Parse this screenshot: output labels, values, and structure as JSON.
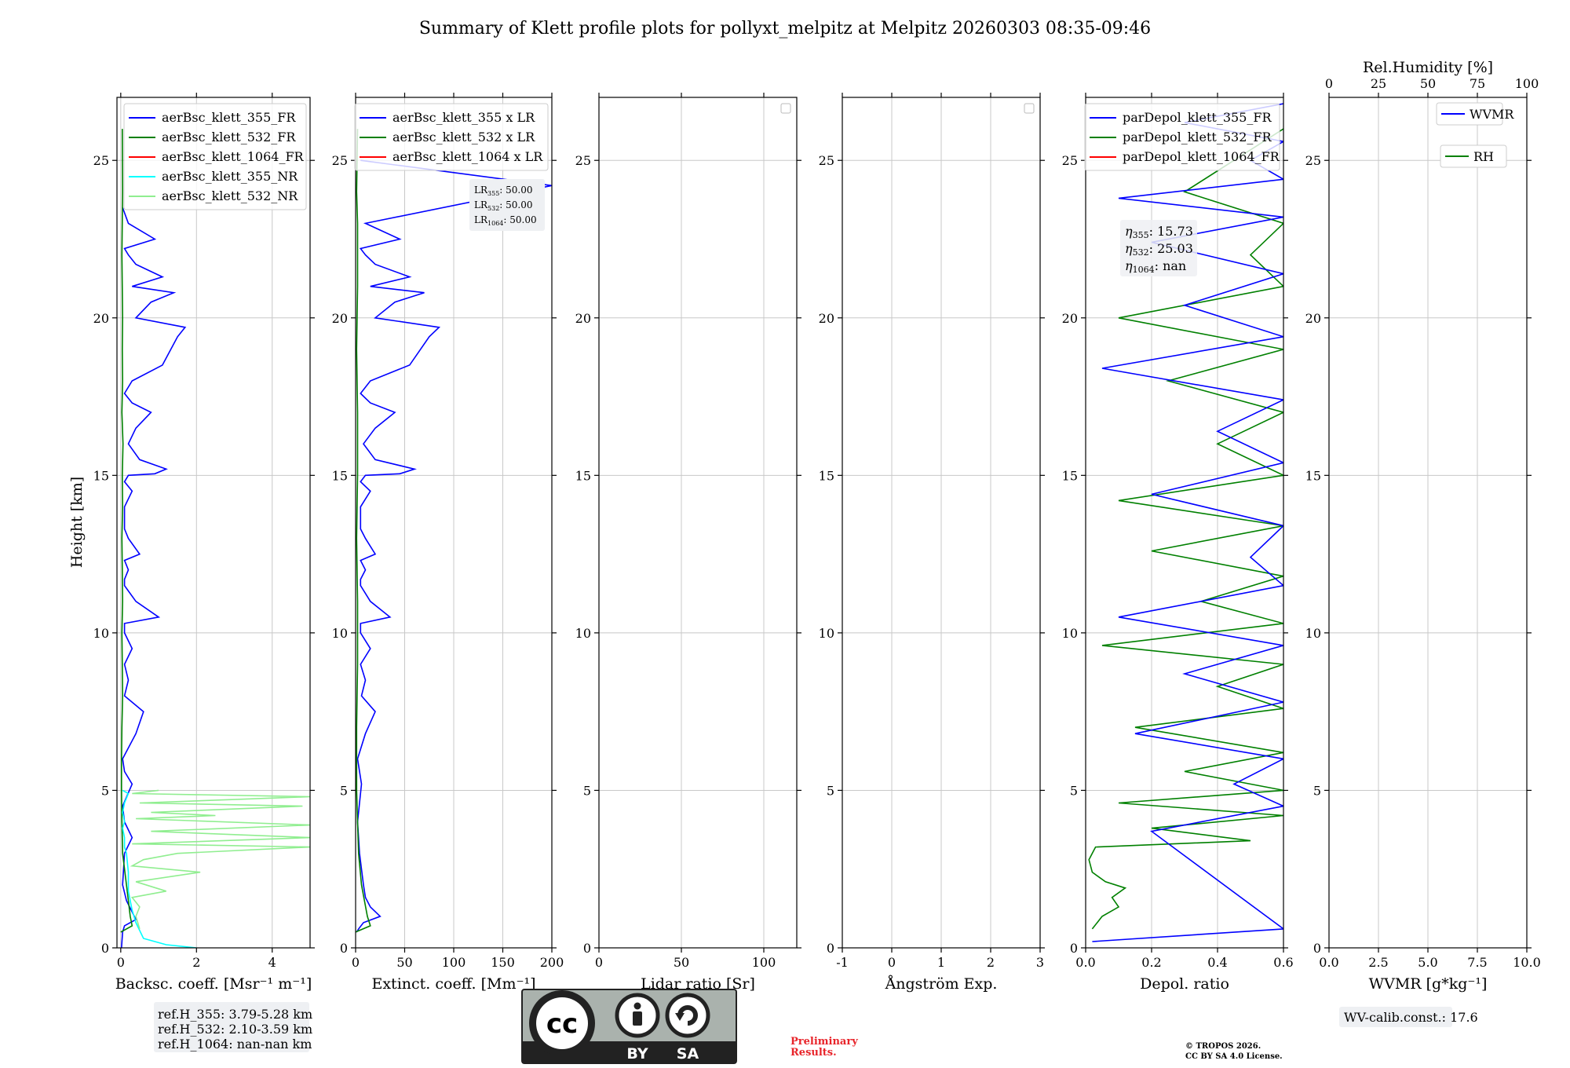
{
  "chart_data": {
    "type": "line",
    "title": "Summary of Klett profile plots for pollyxt_melpitz at Melpitz 20260303 08:35-09:46",
    "ylabel": "Height [km]",
    "ylim": [
      0,
      27
    ],
    "yticks": [
      0,
      5,
      10,
      15,
      20,
      25
    ],
    "grid": true,
    "panels": [
      {
        "id": "bsc",
        "xlabel": "Backsc. coeff. [Msr⁻¹ m⁻¹]",
        "xlim": [
          -0.1,
          5
        ],
        "xticks": [
          0,
          2,
          4
        ],
        "legend": [
          "aerBsc_klett_355_FR",
          "aerBsc_klett_532_FR",
          "aerBsc_klett_1064_FR",
          "aerBsc_klett_355_NR",
          "aerBsc_klett_532_NR"
        ],
        "legend_colors": [
          "#0000ff",
          "#008000",
          "#ff0000",
          "#00ffff",
          "#90ee90"
        ],
        "legend_position": "top-right",
        "series": [
          {
            "name": "aerBsc_klett_355_FR",
            "color": "#0000ff",
            "x": [
              0.02,
              0.05,
              0.1,
              0.4,
              0.15,
              0.05,
              0.1,
              0.3,
              0.1,
              0.05,
              0.3,
              0.1,
              0.05,
              0.4,
              0.6,
              0.1,
              0.2,
              0.1,
              0.3,
              0.1,
              0.1,
              1.0,
              0.4,
              0.1,
              0.1,
              0.2,
              0.1,
              0.5,
              0.2,
              0.1,
              0.1,
              0.3,
              0.1,
              0.2,
              0.9,
              1.2,
              0.5,
              0.2,
              0.4,
              0.8,
              0.3,
              0.1,
              0.3,
              1.1,
              1.5,
              1.7,
              0.4,
              0.8,
              1.4,
              0.3,
              1.1,
              0.4,
              0.2,
              0.1,
              0.9,
              0.2,
              0.05
            ],
            "y": [
              0,
              0.5,
              0.7,
              0.9,
              1.5,
              2,
              3,
              3.5,
              4,
              4.5,
              5.2,
              5.6,
              6,
              6.8,
              7.5,
              8,
              8.5,
              9,
              9.5,
              10,
              10.3,
              10.5,
              11,
              11.5,
              11.7,
              12,
              12.3,
              12.5,
              13,
              13.3,
              14,
              14.5,
              14.8,
              15,
              15.05,
              15.2,
              15.5,
              16,
              16.5,
              17,
              17.3,
              17.6,
              18,
              18.5,
              19.4,
              19.7,
              20,
              20.5,
              20.8,
              21,
              21.3,
              21.7,
              22,
              22.2,
              22.5,
              23,
              23.5
            ]
          },
          {
            "name": "aerBsc_klett_532_FR",
            "color": "#008000",
            "x": [
              0,
              0.3,
              0.25,
              0.15,
              0.05,
              0.03,
              0.02,
              0.02,
              0.03,
              0.05,
              0.04,
              0.03,
              0.05,
              0.04,
              0.03,
              0.05,
              0.04,
              0.06,
              0.03,
              0.05,
              0.04,
              0.05,
              0.03,
              0.05,
              0.04
            ],
            "y": [
              0.5,
              0.7,
              1,
              2,
              3,
              4,
              5,
              6,
              7,
              8,
              9,
              10,
              11,
              12,
              13,
              14,
              15,
              16,
              17,
              18,
              19,
              20,
              22,
              24,
              26
            ]
          },
          {
            "name": "aerBsc_klett_355_NR",
            "color": "#00ffff",
            "x": [
              2.0,
              1.2,
              0.6,
              0.4,
              0.3,
              0.2,
              0.2,
              0.15,
              0.1,
              0.1,
              0.05,
              0.1,
              0.05,
              0.1,
              0.2,
              0.05
            ],
            "y": [
              0,
              0.1,
              0.3,
              0.8,
              1.2,
              1.8,
              2.4,
              3,
              3.2,
              3.5,
              3.8,
              4,
              4.3,
              4.6,
              4.9,
              5.0
            ]
          },
          {
            "name": "aerBsc_klett_532_NR",
            "color": "#90ee90",
            "x": [
              0.5,
              0.4,
              0.5,
              0.3,
              1.2,
              0.4,
              2.1,
              0.3,
              0.6,
              1.5,
              5,
              0.3,
              5,
              0.8,
              5,
              0.4,
              2.5,
              0.8,
              4.8,
              0.5,
              5,
              0.3,
              1.0
            ],
            "y": [
              0.6,
              1.0,
              1.3,
              1.6,
              1.8,
              2.1,
              2.4,
              2.6,
              2.8,
              3.0,
              3.2,
              3.3,
              3.5,
              3.7,
              3.9,
              4.1,
              4.2,
              4.3,
              4.5,
              4.6,
              4.8,
              4.9,
              5.0
            ]
          }
        ]
      },
      {
        "id": "ext",
        "xlabel": "Extinct. coeff. [Mm⁻¹]",
        "xlim": [
          0,
          200
        ],
        "xticks": [
          0,
          50,
          100,
          150,
          200
        ],
        "legend": [
          "aerBsc_klett_355 x LR",
          "aerBsc_klett_532 x LR",
          "aerBsc_klett_1064 x LR"
        ],
        "legend_colors": [
          "#0000ff",
          "#008000",
          "#ff0000"
        ],
        "legend_position": "top-right",
        "lr_box": [
          "LR",
          "355",
          ": 50.00",
          "532",
          ": 50.00",
          "1064",
          ": 50.00"
        ],
        "series": [
          {
            "name": "aerBsc_klett_355 x LR",
            "color": "#0000ff",
            "x": [
              1,
              3,
              8,
              25,
              15,
              10,
              8,
              6,
              4,
              2,
              6,
              4,
              2,
              10,
              20,
              6,
              10,
              5,
              15,
              5,
              5,
              35,
              15,
              5,
              5,
              10,
              5,
              20,
              10,
              5,
              5,
              15,
              5,
              10,
              45,
              60,
              20,
              8,
              20,
              40,
              15,
              5,
              15,
              55,
              75,
              85,
              20,
              40,
              70,
              15,
              55,
              20,
              10,
              5,
              45,
              10,
              200,
              5
            ],
            "y": [
              0.5,
              0.6,
              0.8,
              1.0,
              1.3,
              1.6,
              2.0,
              2.5,
              3.0,
              4.0,
              5.2,
              5.6,
              6,
              6.8,
              7.5,
              8,
              8.5,
              9,
              9.5,
              10,
              10.3,
              10.5,
              11,
              11.5,
              11.7,
              12,
              12.3,
              12.5,
              13,
              13.3,
              14,
              14.5,
              14.8,
              15,
              15.05,
              15.2,
              15.5,
              16,
              16.5,
              17,
              17.3,
              17.6,
              18,
              18.5,
              19.4,
              19.7,
              20,
              20.5,
              20.8,
              21,
              21.3,
              21.7,
              22,
              22.2,
              22.5,
              23,
              24.2,
              25
            ]
          },
          {
            "name": "aerBsc_klett_532 x LR",
            "color": "#008000",
            "x": [
              0,
              15,
              12,
              6,
              3,
              2,
              1,
              1,
              2,
              2,
              1,
              2,
              2,
              1,
              2,
              2,
              1,
              2
            ],
            "y": [
              0.5,
              0.7,
              1.0,
              2.0,
              3.0,
              4.0,
              5,
              7,
              9,
              11,
              13,
              15,
              17,
              19,
              21,
              23,
              24,
              26
            ]
          }
        ]
      },
      {
        "id": "lr",
        "xlabel": "Lidar ratio [Sr]",
        "xlim": [
          0,
          120
        ],
        "xticks": [
          0,
          50,
          100
        ],
        "series": []
      },
      {
        "id": "ang",
        "xlabel": "Ångström Exp.",
        "xlim": [
          -1,
          3
        ],
        "xticks": [
          -1,
          0,
          1,
          2,
          3
        ],
        "series": []
      },
      {
        "id": "depol",
        "xlabel": "Depol. ratio",
        "xlim": [
          0,
          0.6
        ],
        "xticks": [
          "0.0",
          "0.2",
          "0.4",
          "0.6"
        ],
        "legend": [
          "parDepol_klett_355_FR",
          "parDepol_klett_532_FR",
          "parDepol_klett_1064_FR"
        ],
        "legend_colors": [
          "#0000ff",
          "#008000",
          "#ff0000"
        ],
        "legend_position": "top-right",
        "eta_box": [
          [
            "355",
            ": 15.73"
          ],
          [
            "532",
            ": 25.03"
          ],
          [
            "1064",
            ": nan"
          ]
        ],
        "series": [
          {
            "name": "parDepol_klett_532_FR",
            "color": "#008000",
            "x": [
              0.02,
              0.05,
              0.1,
              0.08,
              0.12,
              0.06,
              0.02,
              0.01,
              0.03,
              0.5,
              0.2,
              0.6,
              0.1,
              0.6,
              0.3,
              0.6,
              0.15,
              0.6,
              0.4,
              0.6,
              0.05,
              0.6,
              0.35,
              0.6,
              0.2,
              0.6,
              0.1,
              0.6,
              0.4,
              0.6,
              0.25,
              0.6,
              0.1,
              0.6,
              0.5,
              0.6,
              0.3,
              0.6
            ],
            "y": [
              0.6,
              1.0,
              1.3,
              1.6,
              1.9,
              2.1,
              2.4,
              2.8,
              3.2,
              3.4,
              3.8,
              4.2,
              4.6,
              5.0,
              5.6,
              6.2,
              7.0,
              7.6,
              8.3,
              9.0,
              9.6,
              10.3,
              11.0,
              11.8,
              12.6,
              13.4,
              14.2,
              15.0,
              16.0,
              17.0,
              18.0,
              19.0,
              20.0,
              21.0,
              22.0,
              23.0,
              24.0,
              26.0
            ]
          },
          {
            "name": "parDepol_klett_355_FR",
            "color": "#0000ff",
            "x": [
              0.02,
              0.6,
              0.2,
              0.6,
              0.45,
              0.6,
              0.15,
              0.6,
              0.3,
              0.6,
              0.1,
              0.6,
              0.5,
              0.6,
              0.2,
              0.6,
              0.4,
              0.6,
              0.05,
              0.6,
              0.3,
              0.6,
              0.2,
              0.6,
              0.1,
              0.6,
              0.5,
              0.6,
              0.3,
              0.6
            ],
            "y": [
              0.2,
              0.6,
              3.7,
              4.5,
              5.2,
              6.0,
              6.8,
              7.8,
              8.7,
              9.6,
              10.5,
              11.5,
              12.4,
              13.4,
              14.4,
              15.4,
              16.4,
              17.4,
              18.4,
              19.4,
              20.4,
              21.4,
              22.4,
              23.2,
              23.8,
              24.4,
              25.0,
              25.6,
              26.2,
              26.8
            ]
          }
        ]
      },
      {
        "id": "wv",
        "xlabel": "WVMR [g*kg⁻¹]",
        "xlim": [
          0,
          10
        ],
        "xticks": [
          "0.0",
          "2.5",
          "5.0",
          "7.5",
          "10.0"
        ],
        "top_xlabel": "Rel.Humidity [%]",
        "top_xlim": [
          0,
          100
        ],
        "top_xticks": [
          0,
          25,
          50,
          75,
          100
        ],
        "legend": [
          "WVMR",
          "RH"
        ],
        "legend_colors": [
          "#0000ff",
          "#008000"
        ],
        "legend_position": "top-right",
        "series": []
      }
    ]
  },
  "footer": {
    "ref_h": [
      "ref.H_355: 3.79-5.28 km",
      "ref.H_532: 2.10-3.59 km",
      "ref.H_1064: nan-nan km"
    ],
    "wv_calib": "WV-calib.const.: 17.6",
    "cc_by": "BY",
    "cc_sa": "SA",
    "cc_mark": "cc",
    "prelim": [
      "Preliminary",
      "Results."
    ],
    "copyright": [
      "© TROPOS 2026.",
      "CC BY SA 4.0 License."
    ]
  }
}
